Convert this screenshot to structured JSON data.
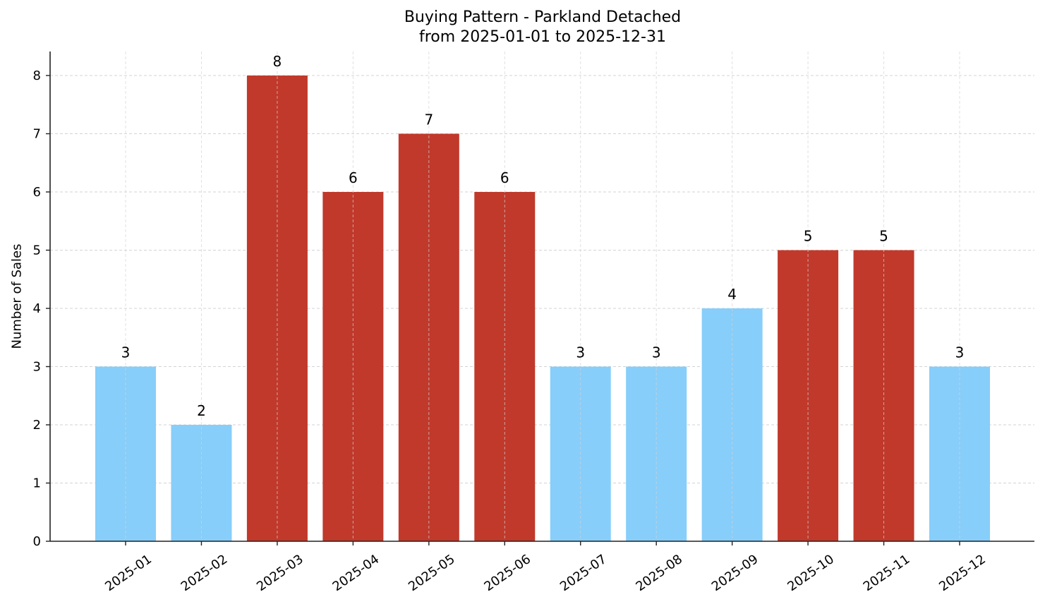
{
  "chart_data": {
    "type": "bar",
    "title": "Buying Pattern - Parkland Detached",
    "subtitle": "from 2025-01-01 to 2025-12-31",
    "xlabel": "",
    "ylabel": "Number of Sales",
    "categories": [
      "2025-01",
      "2025-02",
      "2025-03",
      "2025-04",
      "2025-05",
      "2025-06",
      "2025-07",
      "2025-08",
      "2025-09",
      "2025-10",
      "2025-11",
      "2025-12"
    ],
    "values": [
      3,
      2,
      8,
      6,
      7,
      6,
      3,
      3,
      4,
      5,
      5,
      3
    ],
    "highlighted": [
      false,
      false,
      true,
      true,
      true,
      true,
      false,
      false,
      false,
      true,
      true,
      false
    ],
    "colors": {
      "normal": "#87CEFA",
      "highlight": "#C0392B",
      "grid": "#d3d3d3",
      "axis": "#222222"
    },
    "ylim": [
      0,
      8.4
    ],
    "yticks": [
      0,
      1,
      2,
      3,
      4,
      5,
      6,
      7,
      8
    ],
    "grid": true,
    "grid_style": "dashed",
    "data_labels": true,
    "xtick_rotation": -35,
    "legend": null
  }
}
